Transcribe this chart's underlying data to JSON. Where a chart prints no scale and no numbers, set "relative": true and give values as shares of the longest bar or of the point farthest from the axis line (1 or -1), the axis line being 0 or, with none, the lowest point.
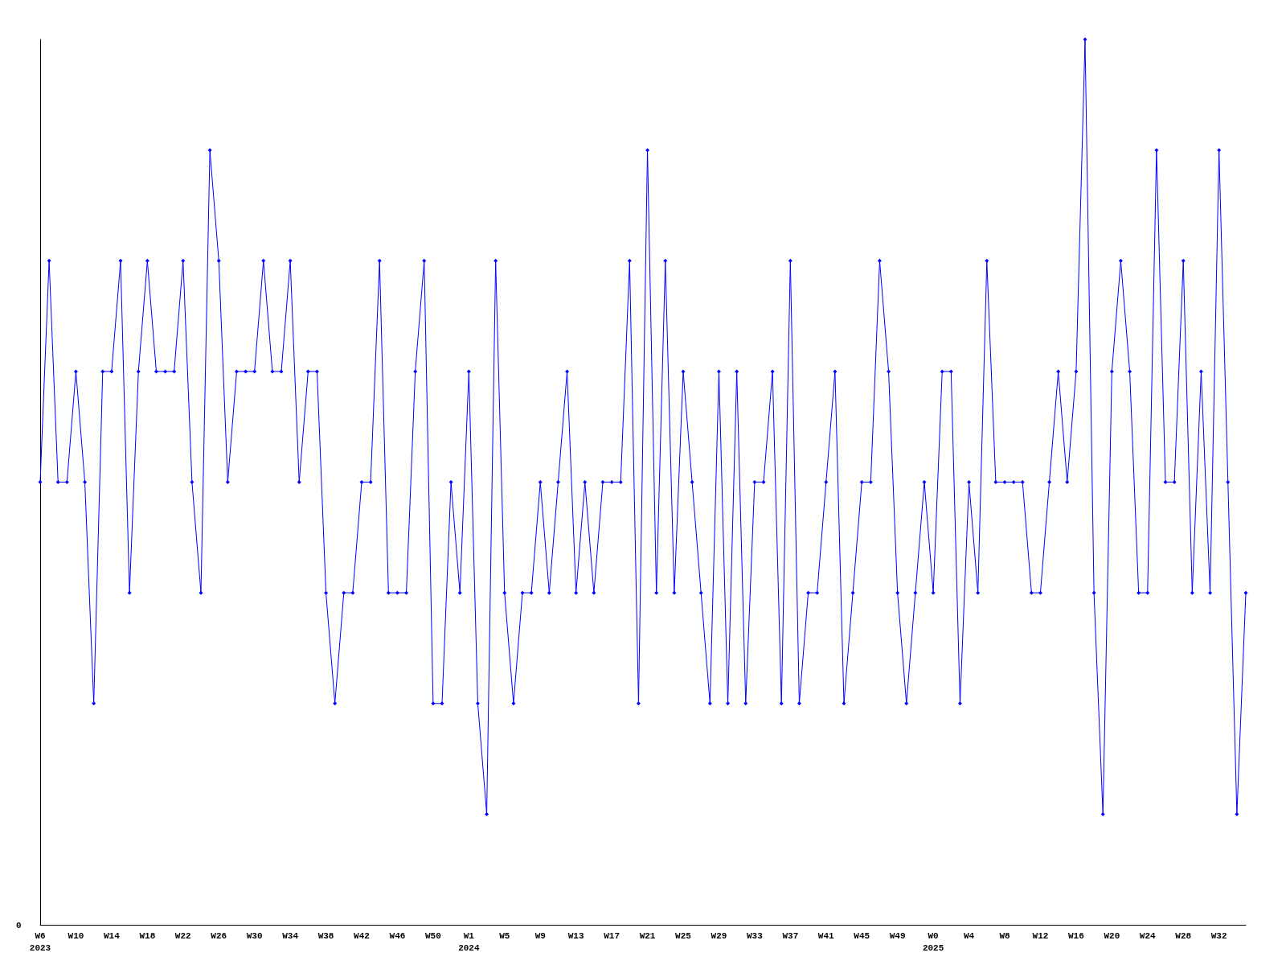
{
  "chart_data": {
    "type": "line",
    "relative": true,
    "marker": "diamond",
    "line_style": "solid",
    "annotations": [
      "0"
    ],
    "categories": [
      "W6\n2023",
      null,
      null,
      null,
      "W10",
      null,
      null,
      null,
      "W14",
      null,
      null,
      null,
      "W18",
      null,
      null,
      null,
      "W22",
      null,
      null,
      null,
      "W26",
      null,
      null,
      null,
      "W30",
      null,
      null,
      null,
      "W34",
      null,
      null,
      null,
      "W38",
      null,
      null,
      null,
      "W42",
      null,
      null,
      null,
      "W46",
      null,
      null,
      null,
      "W50",
      null,
      null,
      null,
      "W1\n2024",
      null,
      null,
      null,
      "W5",
      null,
      null,
      null,
      "W9",
      null,
      null,
      null,
      "W13",
      null,
      null,
      null,
      "W17",
      null,
      null,
      null,
      "W21",
      null,
      null,
      null,
      "W25",
      null,
      null,
      null,
      "W29",
      null,
      null,
      null,
      "W33",
      null,
      null,
      null,
      "W37",
      null,
      null,
      null,
      "W41",
      null,
      null,
      null,
      "W45",
      null,
      null,
      null,
      "W49",
      null,
      null,
      null,
      "W0\n2025",
      null,
      null,
      null,
      "W4",
      null,
      null,
      null,
      "W8",
      null,
      null,
      null,
      "W12",
      null,
      null,
      null,
      "W16",
      null,
      null,
      null,
      "W20",
      null,
      null,
      null,
      "W24",
      null,
      null,
      null,
      "W28",
      null,
      null,
      null,
      "W32",
      null,
      null,
      null
    ],
    "series": [
      {
        "color": "#0000ff",
        "values": [
          0.5,
          0.75,
          0.5,
          0.5,
          0.625,
          0.5,
          0.25,
          0.625,
          0.625,
          0.75,
          0.375,
          0.625,
          0.75,
          0.625,
          0.625,
          0.625,
          0.75,
          0.5,
          0.375,
          0.875,
          0.75,
          0.5,
          0.625,
          0.625,
          0.625,
          0.75,
          0.625,
          0.625,
          0.75,
          0.5,
          0.625,
          0.625,
          0.375,
          0.25,
          0.375,
          0.375,
          0.5,
          0.5,
          0.75,
          0.375,
          0.375,
          0.375,
          0.625,
          0.75,
          0.25,
          0.25,
          0.5,
          0.375,
          0.625,
          0.25,
          0.125,
          0.75,
          0.375,
          0.25,
          0.375,
          0.375,
          0.5,
          0.375,
          0.5,
          0.625,
          0.375,
          0.5,
          0.375,
          0.5,
          0.5,
          0.5,
          0.75,
          0.25,
          0.875,
          0.375,
          0.75,
          0.375,
          0.625,
          0.5,
          0.375,
          0.25,
          0.625,
          0.25,
          0.625,
          0.25,
          0.5,
          0.5,
          0.625,
          0.25,
          0.75,
          0.25,
          0.375,
          0.375,
          0.5,
          0.625,
          0.25,
          0.375,
          0.5,
          0.5,
          0.75,
          0.625,
          0.375,
          0.25,
          0.375,
          0.5,
          0.375,
          0.625,
          0.625,
          0.25,
          0.5,
          0.375,
          0.75,
          0.5,
          0.5,
          0.5,
          0.5,
          0.375,
          0.375,
          0.5,
          0.625,
          0.5,
          0.625,
          1,
          0.375,
          0.125,
          0.625,
          0.75,
          0.625,
          0.375,
          0.375,
          0.875,
          0.5,
          0.5,
          0.75,
          0.375,
          0.625,
          0.375,
          0.875,
          0.5,
          0.125,
          0.375
        ]
      }
    ]
  }
}
